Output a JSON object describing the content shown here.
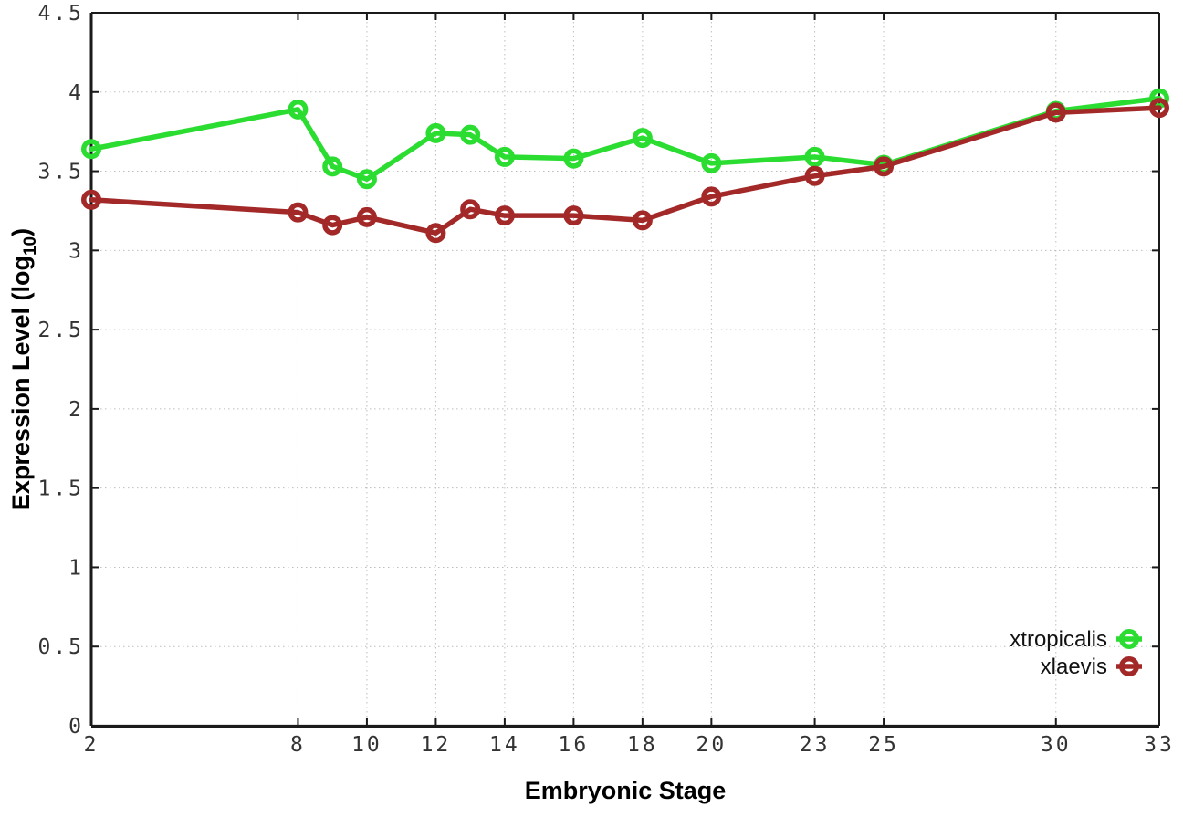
{
  "chart_data": {
    "type": "line",
    "x": [
      2,
      8,
      9,
      10,
      12,
      13,
      14,
      16,
      18,
      20,
      23,
      25,
      30,
      33
    ],
    "series": [
      {
        "name": "xtropicalis",
        "color": "#2bdc31",
        "values": [
          3.64,
          3.89,
          3.53,
          3.45,
          3.74,
          3.73,
          3.59,
          3.58,
          3.71,
          3.55,
          3.59,
          3.54,
          3.88,
          3.96
        ]
      },
      {
        "name": "xlaevis",
        "color": "#a32929",
        "values": [
          3.32,
          3.24,
          3.16,
          3.21,
          3.11,
          3.26,
          3.22,
          3.22,
          3.19,
          3.34,
          3.47,
          3.53,
          3.87,
          3.9
        ]
      }
    ],
    "title": "",
    "xlabel": "Embryonic Stage",
    "ylabel": "Expression Level (log10)",
    "ylabel_parts": {
      "main": "Expression Level (log",
      "sub": "10",
      "end": ")"
    },
    "xlim": [
      2,
      33
    ],
    "ylim": [
      0,
      4.5
    ],
    "xtick_labels": [
      "2",
      "8",
      "10",
      "12",
      "14",
      "16",
      "18",
      "20",
      "23",
      "25",
      "30",
      "33"
    ],
    "ytick_labels": [
      "0",
      "0.5",
      "1",
      "1.5",
      "2",
      "2.5",
      "3",
      "3.5",
      "4",
      "4.5"
    ],
    "grid": true,
    "grid_style": "dotted",
    "legend_position": "bottom-right",
    "marker": "open-circle"
  },
  "legend": {
    "items": [
      {
        "label": "xtropicalis",
        "color": "#2bdc31"
      },
      {
        "label": "xlaevis",
        "color": "#a32929"
      }
    ]
  },
  "colors": {
    "background": "#ffffff",
    "border": "#1a1a1a",
    "grid": "#bdbdbd",
    "tick_label": "#333333",
    "axis_title": "#000000",
    "legend_text": "#111111",
    "series_green": "#2bdc31",
    "series_red": "#a32929"
  }
}
